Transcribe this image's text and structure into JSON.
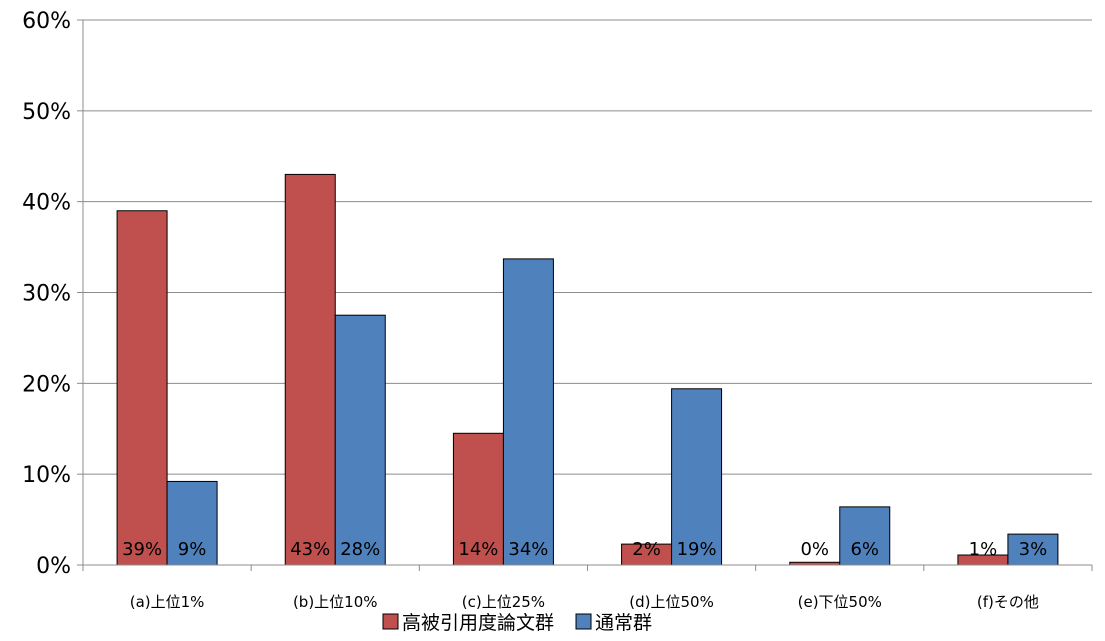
{
  "chart_data": {
    "type": "bar",
    "title": "",
    "xlabel": "",
    "ylabel": "",
    "categories": [
      "(a)上位1%",
      "(b)上位10%",
      "(c)上位25%",
      "(d)上位50%",
      "(e)下位50%",
      "(f)その他"
    ],
    "series": [
      {
        "name": "高被引用度論文群",
        "color": "#c0504d",
        "values": [
          0.39,
          0.43,
          0.145,
          0.023,
          0.003,
          0.011
        ],
        "labels": [
          "39%",
          "43%",
          "14%",
          "2%",
          "0%",
          "1%"
        ]
      },
      {
        "name": "通常群",
        "color": "#4f81bd",
        "values": [
          0.092,
          0.275,
          0.337,
          0.194,
          0.064,
          0.034
        ],
        "labels": [
          "9%",
          "28%",
          "34%",
          "19%",
          "6%",
          "3%"
        ]
      }
    ],
    "ylim": [
      0,
      0.6
    ],
    "yticks": [
      0,
      0.1,
      0.2,
      0.3,
      0.4,
      0.5,
      0.6
    ],
    "ytick_labels": [
      "0%",
      "10%",
      "20%",
      "30%",
      "40%",
      "50%",
      "60%"
    ],
    "grid": true,
    "legend": "bottom-center"
  }
}
